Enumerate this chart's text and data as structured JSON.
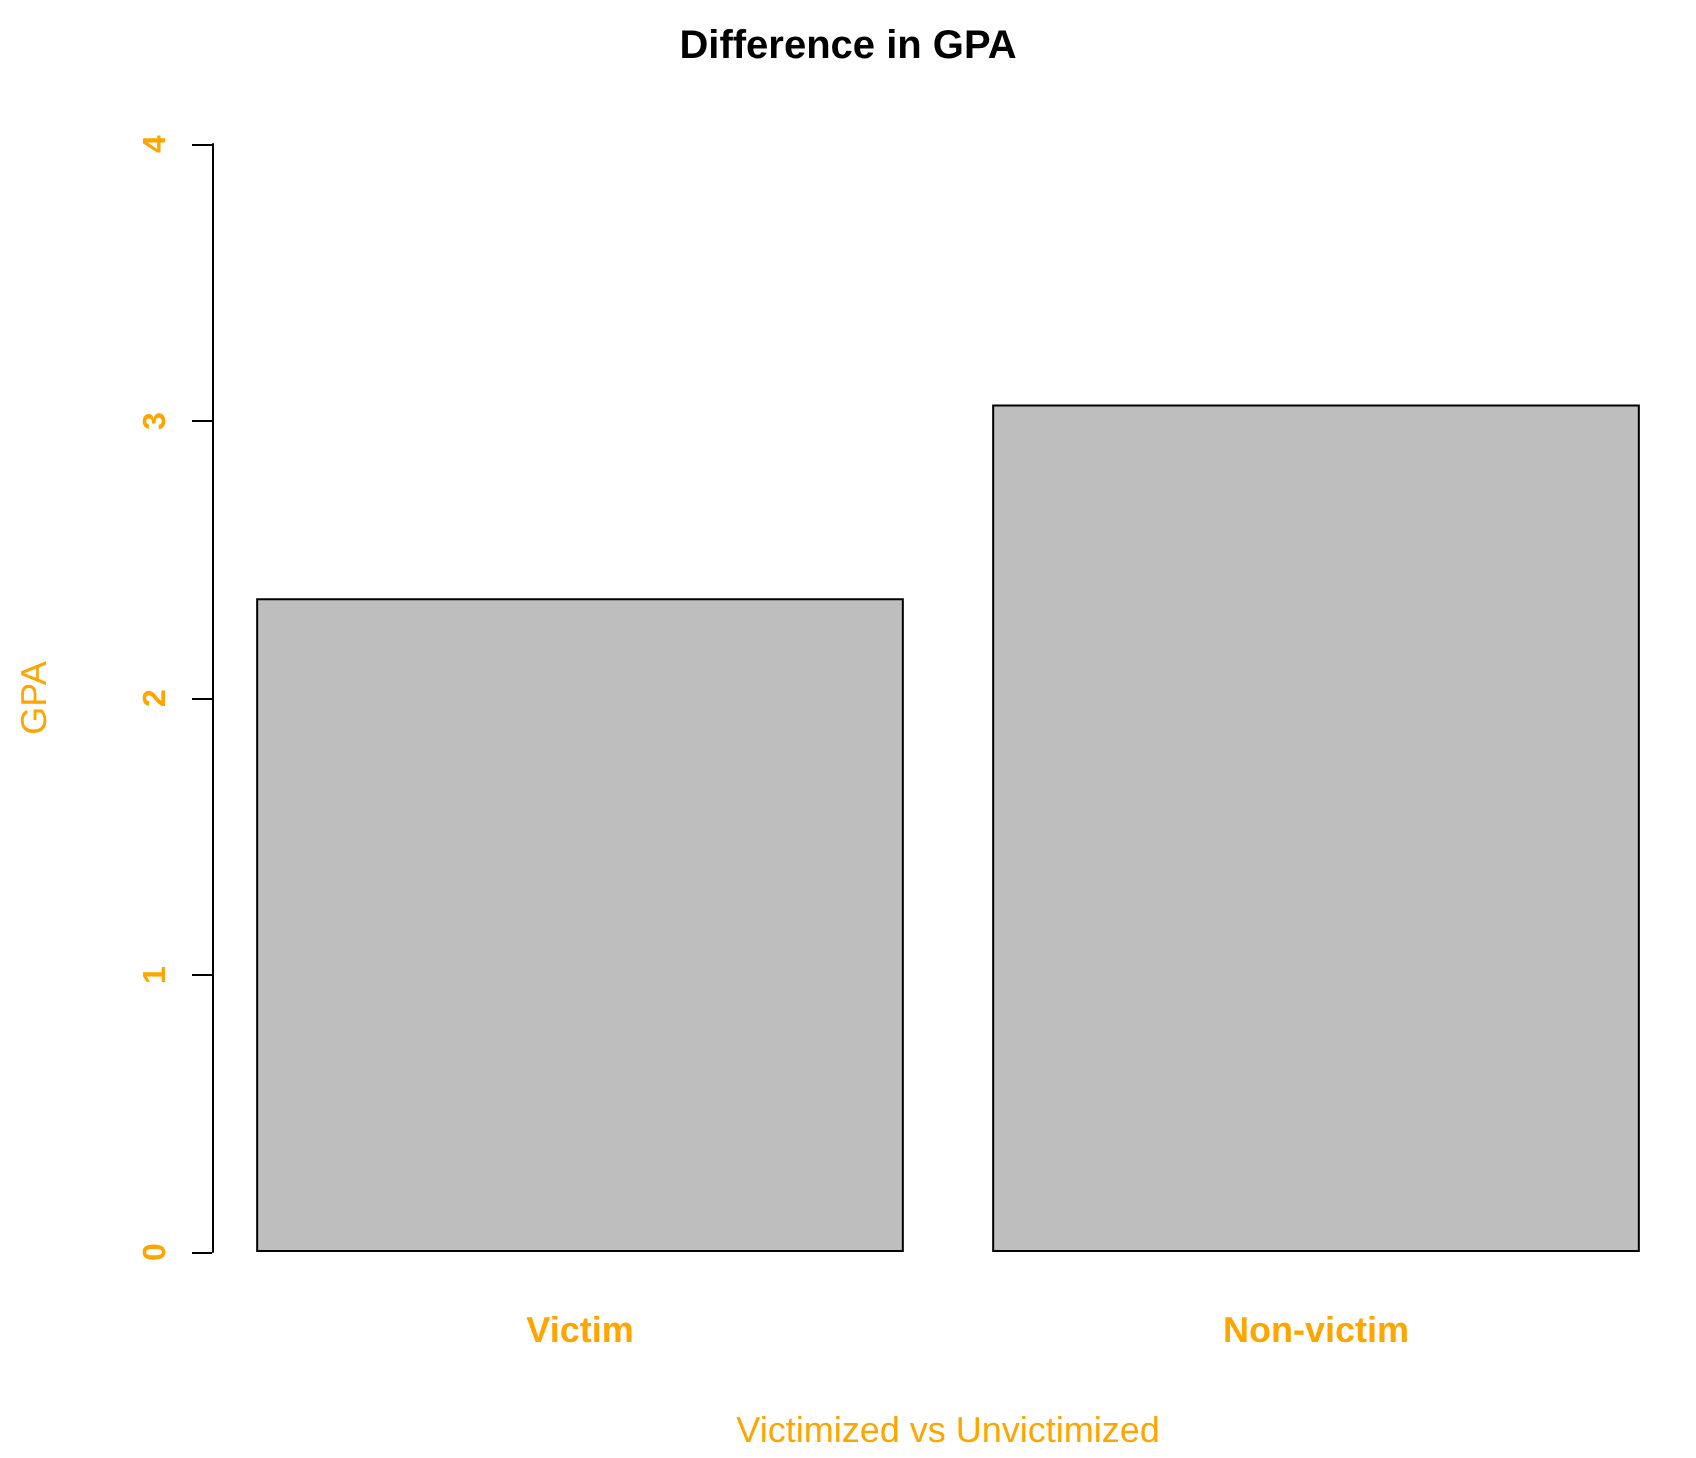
{
  "chart_data": {
    "type": "bar",
    "title": "Difference in GPA",
    "xlabel": "Victimized vs Unvictimized",
    "ylabel": "GPA",
    "categories": [
      "Victim",
      "Non-victim"
    ],
    "values": [
      2.36,
      3.06
    ],
    "color": "#bebebe",
    "ylim": [
      0,
      4
    ],
    "yticks": [
      0,
      1,
      2,
      3,
      4
    ],
    "grid": false
  }
}
